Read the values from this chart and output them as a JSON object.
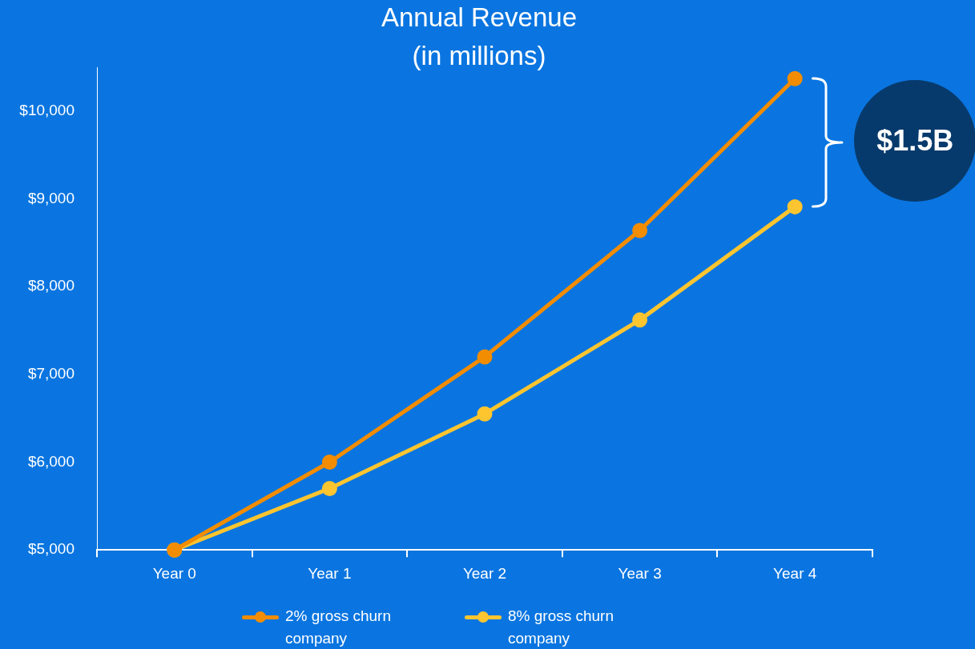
{
  "chart_data": {
    "type": "line",
    "title": "Annual Revenue",
    "subtitle": "(in millions)",
    "categories": [
      "Year 0",
      "Year 1",
      "Year 2",
      "Year 3",
      "Year 4"
    ],
    "series": [
      {
        "name": "2% gross churn company",
        "color": "#f28c00",
        "values": [
          5000,
          6000,
          7200,
          8640,
          10370
        ]
      },
      {
        "name": "8% gross churn company",
        "color": "#fdc52f",
        "values": [
          5000,
          5700,
          6550,
          7620,
          8910
        ]
      }
    ],
    "ylim": [
      5000,
      10500
    ],
    "yticks": [
      {
        "value": 5000,
        "label": "$5,000"
      },
      {
        "value": 6000,
        "label": "$6,000"
      },
      {
        "value": 7000,
        "label": "$7,000"
      },
      {
        "value": 8000,
        "label": "$8,000"
      },
      {
        "value": 9000,
        "label": "$9,000"
      },
      {
        "value": 10000,
        "label": "$10,000"
      }
    ],
    "grid": false,
    "legend": "bottom",
    "marker": "circle",
    "annotations": [
      "$1.5B"
    ]
  }
}
